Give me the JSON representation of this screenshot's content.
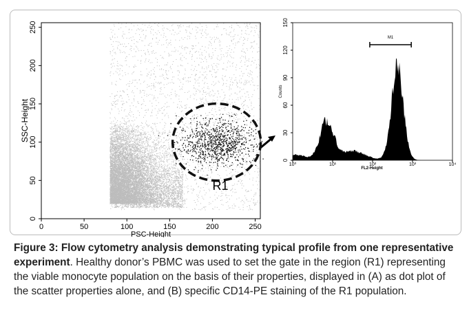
{
  "chart_data": [
    {
      "type": "scatter",
      "xlabel": "PSC-Height",
      "ylabel": "SSC-Height",
      "xlim": [
        0,
        256
      ],
      "ylim": [
        0,
        256
      ],
      "xticks": [
        0,
        50,
        100,
        150,
        200,
        250
      ],
      "yticks": [
        0,
        50,
        100,
        150,
        200,
        250
      ],
      "gate_label": "R1"
    },
    {
      "type": "histogram",
      "xlabel": "FL2-Height",
      "ylabel": "Counts",
      "log_x": true,
      "xlim": [
        1,
        10000
      ],
      "ylim": [
        0,
        150
      ],
      "xticks": [
        {
          "value": 1,
          "label": "10⁰"
        },
        {
          "value": 10,
          "label": "10¹"
        },
        {
          "value": 100,
          "label": "10²"
        },
        {
          "value": 1000,
          "label": "10³"
        },
        {
          "value": 10000,
          "label": "10⁴"
        }
      ],
      "yticks": [
        0,
        30,
        60,
        90,
        120,
        150
      ],
      "marker_label": "M1",
      "marker_range": [
        85,
        930
      ]
    }
  ],
  "caption": {
    "bold": "Figure 3: Flow cytometry analysis demonstrating typical profile from one representative experiment",
    "text": ". Healthy donor’s PBMC was used to set the gate in the region (R1) representing the viable monocyte population on the basis of their properties, displayed in (A) as dot plot of the scatter properties alone, and (B) specific CD14-PE staining of the R1 population."
  }
}
